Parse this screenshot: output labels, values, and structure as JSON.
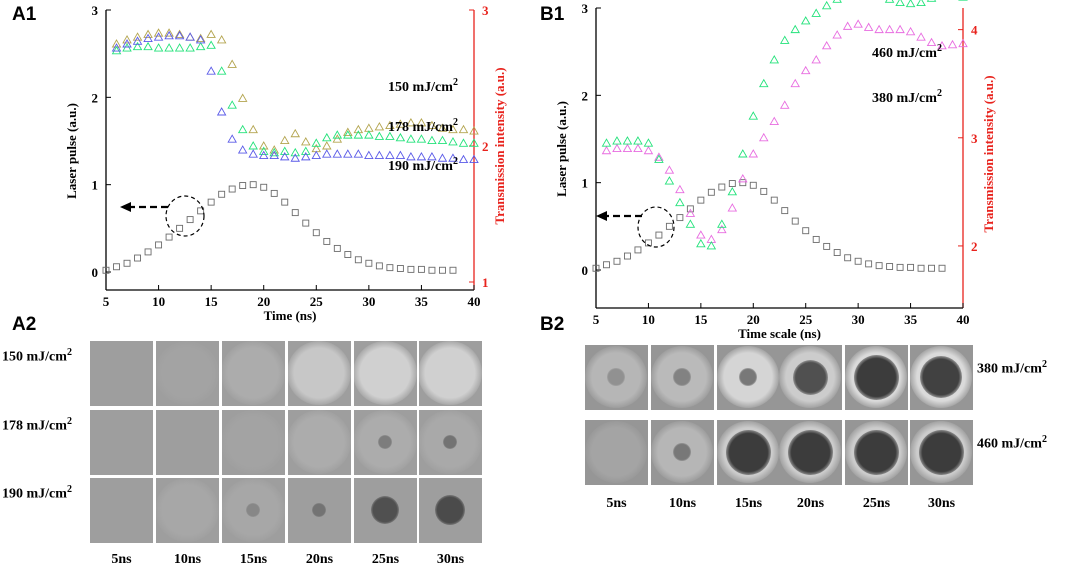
{
  "panels": {
    "a1": "A1",
    "b1": "B1",
    "a2": "A2",
    "b2": "B2"
  },
  "colors": {
    "gray": "#6b6b6b",
    "blue": "#5a5ae8",
    "green": "#22e27a",
    "olive": "#b3a44e",
    "magenta": "#e86ce0",
    "red": "#e8231d"
  },
  "chart_data": [
    {
      "id": "A1",
      "type": "scatter",
      "xlabel": "Time (ns)",
      "ylabel_left": "Laser pulse (a.u.)",
      "ylabel_right": "Transmission intensity (a.u.)",
      "xlim": [
        5,
        40
      ],
      "ylim_left": [
        0,
        3
      ],
      "ylim_right": [
        1,
        3
      ],
      "xticks": [
        "5",
        "10",
        "15",
        "20",
        "25",
        "30",
        "35",
        "40"
      ],
      "yticks_left": [
        "0",
        "1",
        "2",
        "3"
      ],
      "yticks_right": [
        "1",
        "2",
        "3"
      ],
      "series": [
        {
          "name": "Laser pulse",
          "axis": "left",
          "marker": "square",
          "color": "gray",
          "x": [
            5,
            6,
            7,
            8,
            9,
            10,
            11,
            12,
            13,
            14,
            15,
            16,
            17,
            18,
            19,
            20,
            21,
            22,
            23,
            24,
            25,
            26,
            27,
            28,
            29,
            30,
            31,
            32,
            33,
            34,
            35,
            36,
            37,
            38
          ],
          "y": [
            0.02,
            0.06,
            0.1,
            0.16,
            0.23,
            0.31,
            0.4,
            0.5,
            0.6,
            0.7,
            0.8,
            0.89,
            0.95,
            0.99,
            1.0,
            0.97,
            0.9,
            0.8,
            0.68,
            0.56,
            0.45,
            0.35,
            0.27,
            0.2,
            0.14,
            0.1,
            0.07,
            0.05,
            0.04,
            0.03,
            0.03,
            0.02,
            0.02,
            0.02
          ]
        },
        {
          "name": "150 mJ/cm2",
          "axis": "right",
          "marker": "triangle",
          "color": "olive",
          "x": [
            6,
            7,
            8,
            9,
            10,
            11,
            12,
            13,
            14,
            15,
            16,
            17,
            18,
            19,
            20,
            21,
            22,
            23,
            24,
            25,
            26,
            27,
            28,
            29,
            30,
            31,
            32,
            33,
            34,
            35,
            36,
            37,
            38,
            39,
            40
          ],
          "y": [
            2.75,
            2.78,
            2.8,
            2.82,
            2.83,
            2.83,
            2.82,
            2.8,
            2.79,
            2.82,
            2.78,
            2.6,
            2.35,
            2.12,
            2.0,
            1.97,
            2.04,
            2.09,
            2.03,
            1.98,
            2.0,
            2.05,
            2.1,
            2.12,
            2.13,
            2.14,
            2.15,
            2.16,
            2.17,
            2.17,
            2.15,
            2.13,
            2.12,
            2.12,
            2.11
          ]
        },
        {
          "name": "178 mJ/cm2",
          "axis": "right",
          "marker": "triangle",
          "color": "green",
          "x": [
            6,
            7,
            8,
            9,
            10,
            11,
            12,
            13,
            14,
            15,
            16,
            17,
            18,
            19,
            20,
            21,
            22,
            23,
            24,
            25,
            26,
            27,
            28,
            29,
            30,
            31,
            32,
            33,
            34,
            35,
            36,
            37,
            38,
            39,
            40
          ],
          "y": [
            2.7,
            2.72,
            2.73,
            2.73,
            2.72,
            2.72,
            2.72,
            2.72,
            2.73,
            2.74,
            2.55,
            2.3,
            2.12,
            2.0,
            1.96,
            1.95,
            1.96,
            1.95,
            1.96,
            2.02,
            2.06,
            2.08,
            2.08,
            2.08,
            2.08,
            2.07,
            2.07,
            2.06,
            2.05,
            2.05,
            2.04,
            2.04,
            2.03,
            2.02,
            2.02
          ]
        },
        {
          "name": "190 mJ/cm2",
          "axis": "right",
          "marker": "triangle",
          "color": "blue",
          "x": [
            6,
            7,
            8,
            9,
            10,
            11,
            12,
            13,
            14,
            15,
            16,
            17,
            18,
            19,
            20,
            21,
            22,
            23,
            24,
            25,
            26,
            27,
            28,
            29,
            30,
            31,
            32,
            33,
            34,
            35,
            36,
            37,
            38,
            39,
            40
          ],
          "y": [
            2.72,
            2.75,
            2.77,
            2.79,
            2.8,
            2.81,
            2.81,
            2.8,
            2.78,
            2.55,
            2.25,
            2.05,
            1.97,
            1.94,
            1.93,
            1.93,
            1.92,
            1.91,
            1.92,
            1.93,
            1.94,
            1.94,
            1.94,
            1.94,
            1.93,
            1.93,
            1.93,
            1.93,
            1.92,
            1.92,
            1.92,
            1.91,
            1.91,
            1.9,
            1.9
          ]
        }
      ],
      "annotations": [
        {
          "series": "150 mJ/cm2",
          "text": "150 mJ/cm",
          "sup": "2"
        },
        {
          "series": "178 mJ/cm2",
          "text": "178 mJ/cm",
          "sup": "2"
        },
        {
          "series": "190 mJ/cm2",
          "text": "190 mJ/cm",
          "sup": "2"
        }
      ]
    },
    {
      "id": "B1",
      "type": "scatter",
      "xlabel": "Time scale (ns)",
      "ylabel_left": "Laser pulse (a.u.)",
      "ylabel_right": "Transmission intensity (a.u.)",
      "xlim": [
        5,
        40
      ],
      "ylim_left": [
        0,
        3
      ],
      "ylim_right": [
        1.5,
        4.2
      ],
      "xticks": [
        "5",
        "10",
        "15",
        "20",
        "25",
        "30",
        "35",
        "40"
      ],
      "yticks_left": [
        "0",
        "1",
        "2",
        "3"
      ],
      "yticks_right": [
        "2",
        "3",
        "4"
      ],
      "series": [
        {
          "name": "Laser pulse",
          "axis": "left",
          "marker": "square",
          "color": "gray",
          "x": [
            5,
            6,
            7,
            8,
            9,
            10,
            11,
            12,
            13,
            14,
            15,
            16,
            17,
            18,
            19,
            20,
            21,
            22,
            23,
            24,
            25,
            26,
            27,
            28,
            29,
            30,
            31,
            32,
            33,
            34,
            35,
            36,
            37,
            38
          ],
          "y": [
            0.02,
            0.06,
            0.1,
            0.16,
            0.23,
            0.31,
            0.4,
            0.5,
            0.6,
            0.7,
            0.8,
            0.89,
            0.95,
            0.99,
            1.0,
            0.97,
            0.9,
            0.8,
            0.68,
            0.56,
            0.45,
            0.35,
            0.27,
            0.2,
            0.14,
            0.1,
            0.07,
            0.05,
            0.04,
            0.03,
            0.03,
            0.02,
            0.02,
            0.02
          ]
        },
        {
          "name": "380 mJ/cm2",
          "axis": "right",
          "marker": "triangle",
          "color": "magenta",
          "x": [
            6,
            7,
            8,
            9,
            10,
            11,
            12,
            13,
            14,
            15,
            16,
            17,
            18,
            19,
            20,
            21,
            22,
            23,
            24,
            25,
            26,
            27,
            28,
            29,
            30,
            31,
            32,
            33,
            34,
            35,
            36,
            37,
            38,
            39,
            40
          ],
          "y": [
            2.88,
            2.9,
            2.9,
            2.9,
            2.88,
            2.82,
            2.7,
            2.52,
            2.3,
            2.1,
            2.06,
            2.15,
            2.35,
            2.62,
            2.85,
            3.0,
            3.15,
            3.3,
            3.5,
            3.62,
            3.72,
            3.85,
            3.95,
            4.03,
            4.05,
            4.02,
            4.0,
            4.0,
            4.0,
            3.98,
            3.93,
            3.88,
            3.85,
            3.86,
            3.87
          ]
        },
        {
          "name": "460 mJ/cm2",
          "axis": "right",
          "marker": "triangle",
          "color": "green",
          "x": [
            6,
            7,
            8,
            9,
            10,
            11,
            12,
            13,
            14,
            15,
            16,
            17,
            18,
            19,
            20,
            21,
            22,
            23,
            24,
            25,
            26,
            27,
            28,
            29,
            30,
            31,
            32,
            33,
            34,
            35,
            36,
            37,
            38,
            39,
            40
          ],
          "y": [
            2.95,
            2.97,
            2.97,
            2.97,
            2.95,
            2.8,
            2.6,
            2.4,
            2.2,
            2.02,
            2.0,
            2.2,
            2.5,
            2.85,
            3.2,
            3.5,
            3.72,
            3.9,
            4.0,
            4.08,
            4.15,
            4.22,
            4.28,
            4.35,
            4.39,
            4.37,
            4.32,
            4.28,
            4.25,
            4.24,
            4.25,
            4.29,
            4.33,
            4.32,
            4.3
          ]
        }
      ],
      "annotations": [
        {
          "series": "460 mJ/cm2",
          "text": "460 mJ/cm",
          "sup": "2"
        },
        {
          "series": "380 mJ/cm2",
          "text": "380 mJ/cm",
          "sup": "2"
        }
      ]
    }
  ],
  "a2": {
    "rows": [
      {
        "label": "150 mJ/cm",
        "sup": "2"
      },
      {
        "label": "178 mJ/cm",
        "sup": "2"
      },
      {
        "label": "190 mJ/cm",
        "sup": "2"
      }
    ],
    "cols": [
      "5ns",
      "10ns",
      "15ns",
      "20ns",
      "25ns",
      "30ns"
    ],
    "bright": [
      [
        0.0,
        0.05,
        0.15,
        0.45,
        0.55,
        0.55
      ],
      [
        0.0,
        0.0,
        0.05,
        0.15,
        0.15,
        0.12
      ],
      [
        0.0,
        0.1,
        0.1,
        0.0,
        0.0,
        0.0
      ]
    ],
    "dark": [
      [
        0,
        0,
        0,
        0,
        0,
        0
      ],
      [
        0,
        0,
        0,
        0,
        0.25,
        0.35
      ],
      [
        0,
        0,
        0.15,
        0.35,
        0.7,
        0.75
      ]
    ]
  },
  "b2": {
    "rows": [
      {
        "label": "380 mJ/cm",
        "sup": "2"
      },
      {
        "label": "460 mJ/cm",
        "sup": "2"
      }
    ],
    "cols": [
      "5ns",
      "10ns",
      "15ns",
      "20ns",
      "25ns",
      "30ns"
    ],
    "bright": [
      [
        0.35,
        0.4,
        0.7,
        0.6,
        0.75,
        0.75
      ],
      [
        0.15,
        0.35,
        0.6,
        0.6,
        0.6,
        0.6
      ]
    ],
    "dark": [
      [
        0.05,
        0.2,
        0.3,
        0.7,
        0.9,
        0.85
      ],
      [
        0.0,
        0.3,
        0.9,
        0.9,
        0.9,
        0.9
      ]
    ]
  }
}
